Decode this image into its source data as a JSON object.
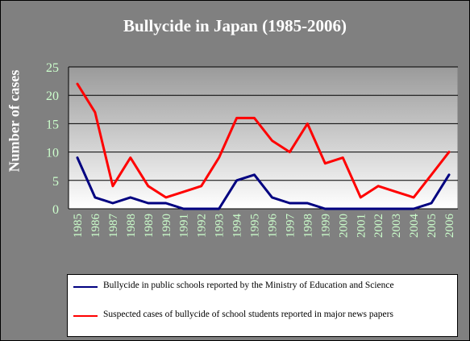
{
  "chart_data": {
    "type": "line",
    "title": "Bullycide in Japan (1985-2006)",
    "xlabel": "",
    "ylabel": "Number of cases",
    "x": [
      "1985",
      "1986",
      "1987",
      "1988",
      "1989",
      "1990",
      "1991",
      "1992",
      "1993",
      "1994",
      "1995",
      "1996",
      "1997",
      "1998",
      "1999",
      "2000",
      "2001",
      "2002",
      "2003",
      "2004",
      "2005",
      "2006"
    ],
    "ylim": [
      0,
      25
    ],
    "yticks": [
      0,
      5,
      10,
      15,
      20,
      25
    ],
    "grid": true,
    "legend_position": "bottom",
    "series": [
      {
        "name": "Bullycide in public schools reported by the Ministry of Education and Science",
        "color": "#000080",
        "values": [
          9,
          2,
          1,
          2,
          1,
          1,
          0,
          0,
          0,
          5,
          6,
          2,
          1,
          1,
          0,
          0,
          0,
          0,
          0,
          0,
          1,
          6
        ]
      },
      {
        "name": "Suspected cases of bullycide of school students reported in major news papers",
        "color": "#ff0000",
        "values": [
          22,
          17,
          4,
          9,
          4,
          2,
          3,
          4,
          9,
          16,
          16,
          12,
          10,
          15,
          8,
          9,
          2,
          4,
          3,
          2,
          6,
          10
        ]
      }
    ]
  }
}
